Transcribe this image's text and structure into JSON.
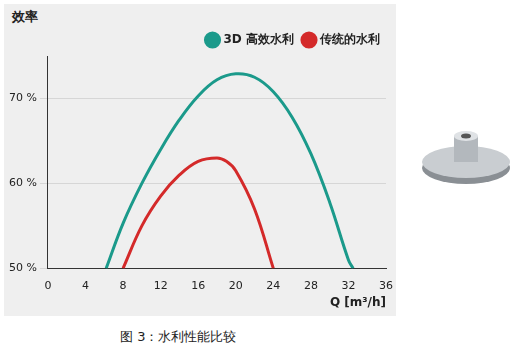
{
  "chart_data": {
    "type": "line",
    "title": "图 3：水利性能比较",
    "y_label": "效率",
    "x_label": "Q [m³/h]",
    "series": [
      {
        "name": "3D 高效水利",
        "color": "#1b9a8b",
        "x": [
          6.2,
          8,
          10,
          12,
          14,
          16,
          18,
          20,
          22,
          24,
          26,
          28,
          30,
          32,
          32.5
        ],
        "values": [
          50,
          55.3,
          60,
          64,
          67.5,
          70.3,
          72.2,
          72.9,
          72.5,
          70.8,
          67.8,
          63.5,
          57.8,
          51,
          50
        ]
      },
      {
        "name": "传统的水利",
        "color": "#d42a2a",
        "x": [
          8,
          10,
          12,
          14,
          16,
          18,
          19,
          20,
          22,
          24
        ],
        "values": [
          50,
          55,
          58.5,
          61,
          62.6,
          63,
          62.6,
          61.5,
          57,
          50
        ]
      }
    ],
    "xlim": [
      0,
      36
    ],
    "xticks": [
      0,
      4,
      8,
      12,
      16,
      20,
      24,
      28,
      32,
      36
    ],
    "ylim": [
      50,
      75
    ],
    "yticks": [
      {
        "value": 50,
        "label": "50 %"
      },
      {
        "value": 60,
        "label": "60 %"
      },
      {
        "value": 70,
        "label": "70 %"
      }
    ],
    "grid": true,
    "legend": "upper right"
  }
}
